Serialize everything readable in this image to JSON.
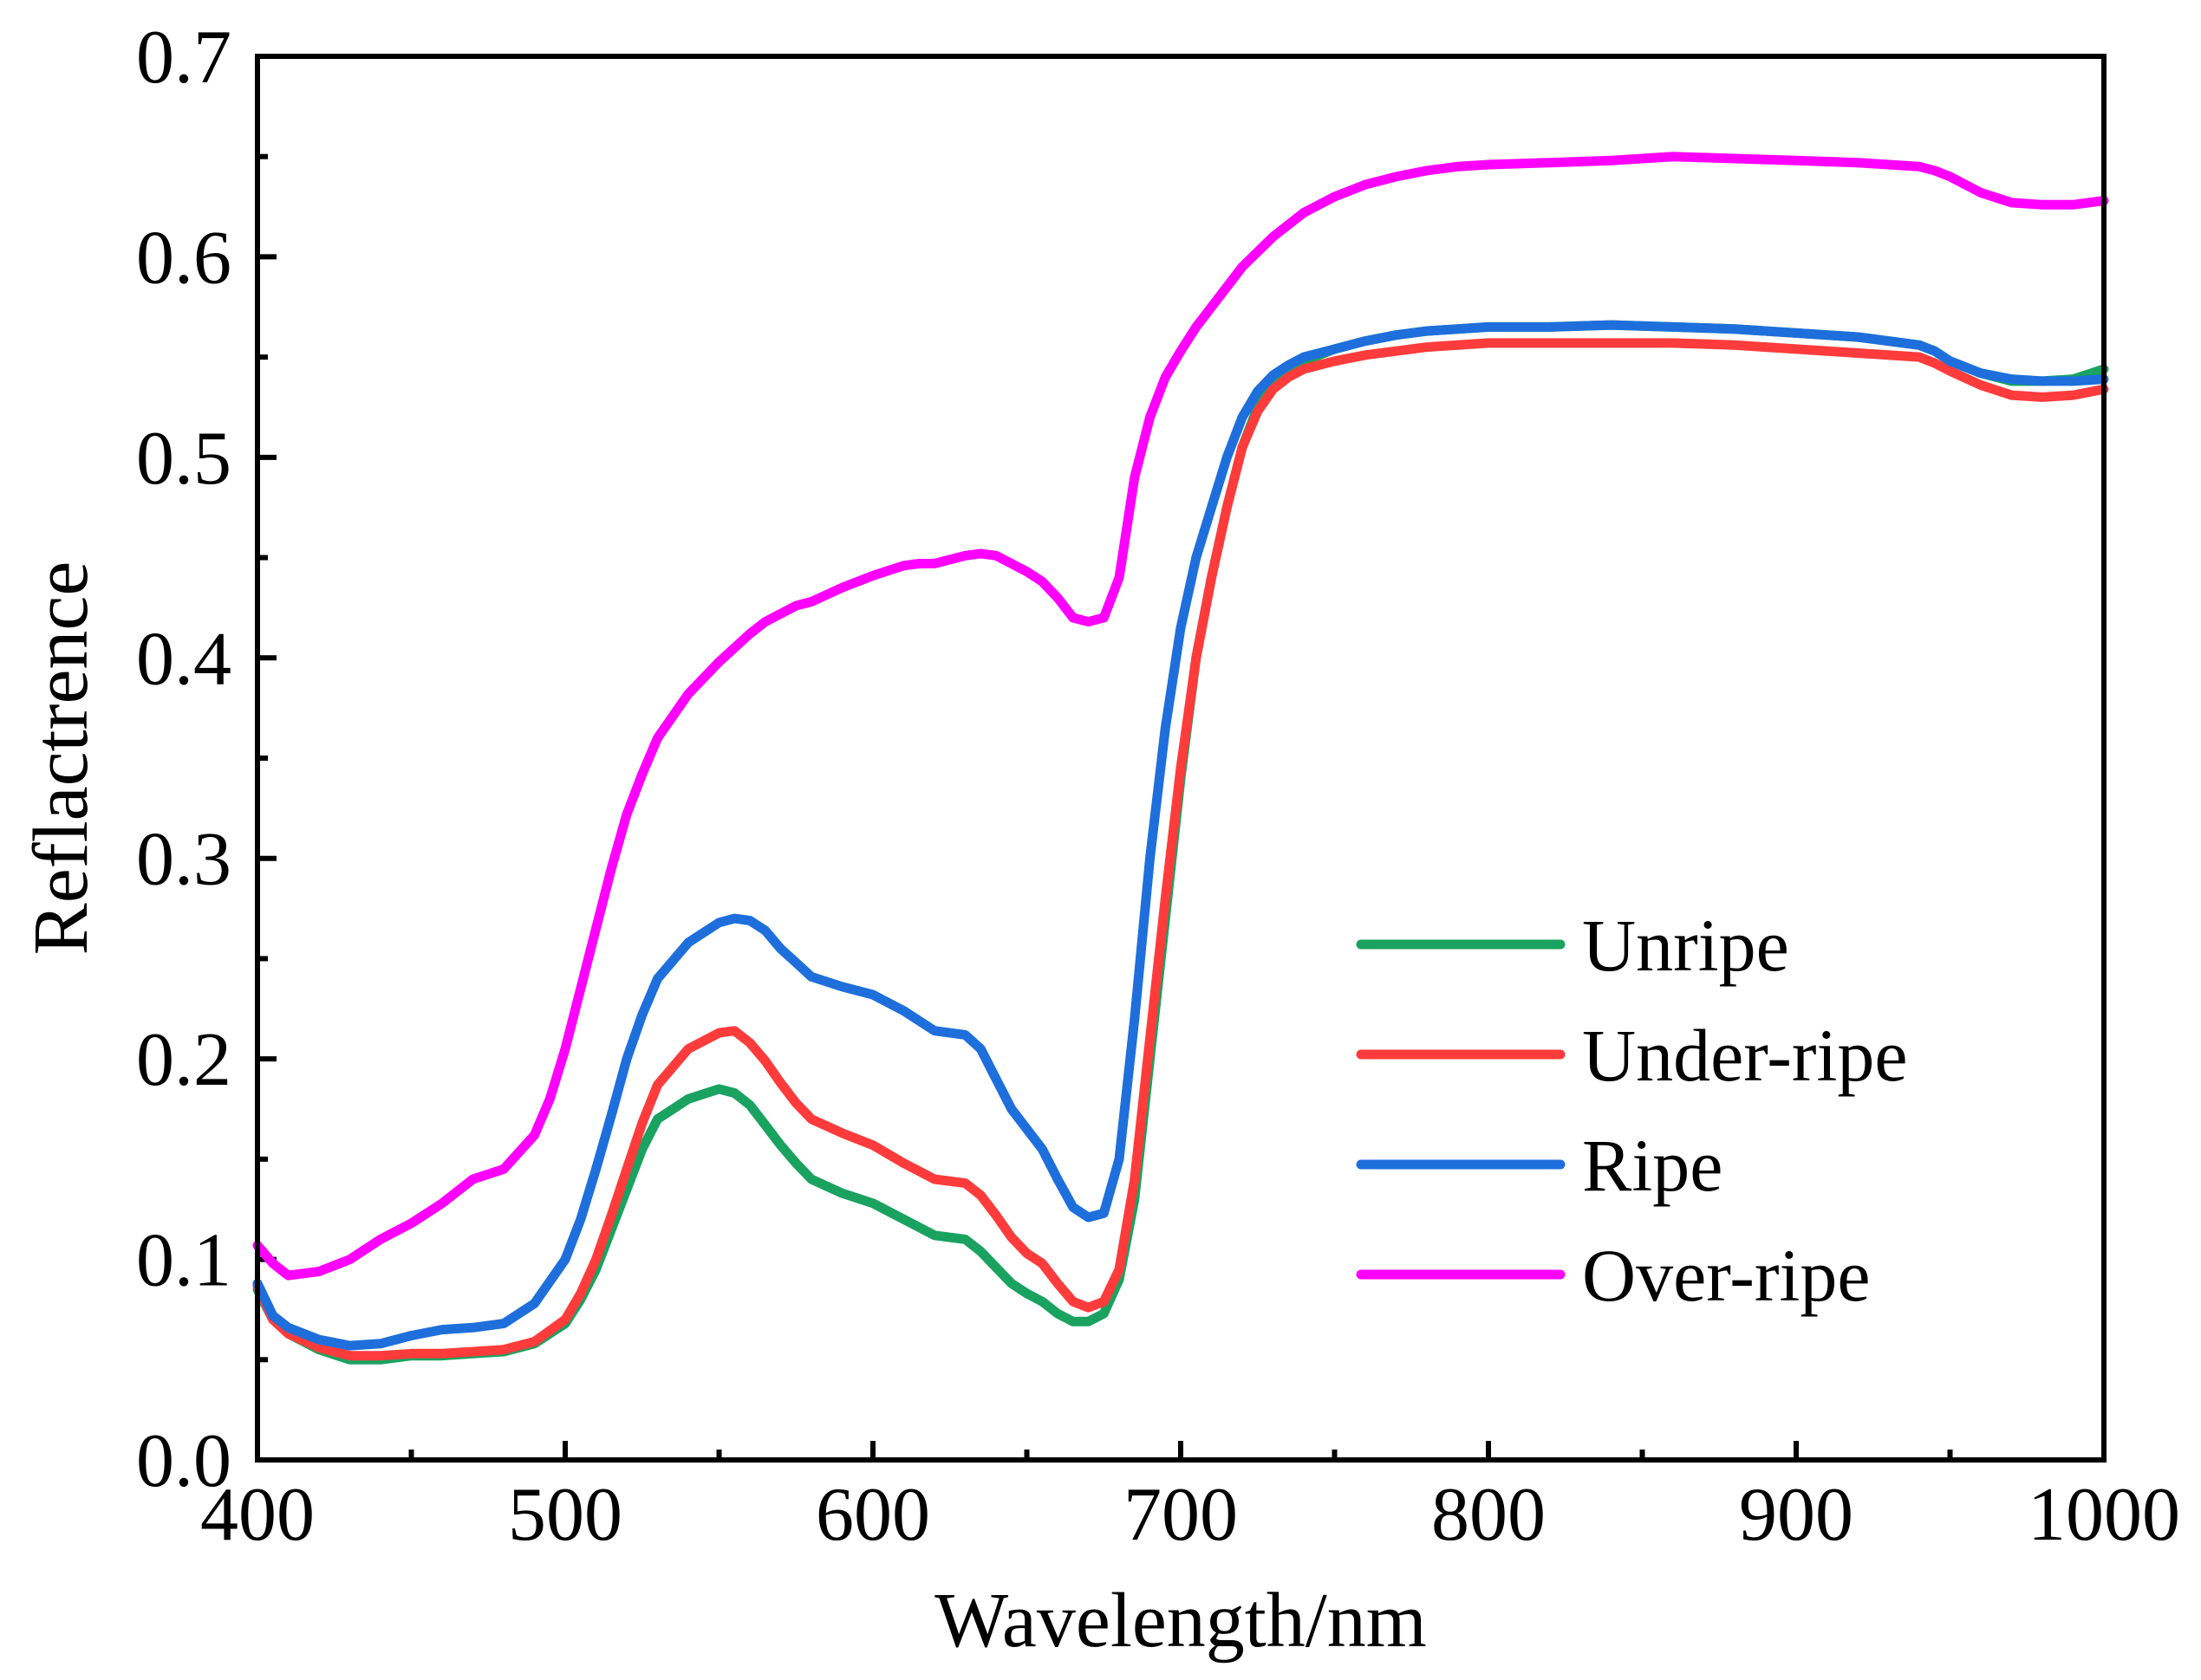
{
  "chart_data": {
    "type": "line",
    "title": "",
    "xlabel": "Wavelength/nm",
    "ylabel": "Reflactrence",
    "xlim": [
      400,
      1000
    ],
    "ylim": [
      0.0,
      0.7
    ],
    "xticks": [
      400,
      500,
      600,
      700,
      800,
      900,
      1000
    ],
    "xtick_labels": [
      "400",
      "500",
      "600",
      "700",
      "800",
      "900",
      "1000"
    ],
    "yticks": [
      0.0,
      0.1,
      0.2,
      0.3,
      0.4,
      0.5,
      0.6,
      0.7
    ],
    "ytick_labels": [
      "0.0",
      "0.1",
      "0.2",
      "0.3",
      "0.4",
      "0.5",
      "0.6",
      "0.7"
    ],
    "grid": false,
    "legend_position": "lower-right",
    "series": [
      {
        "name": "Unripe",
        "color": "#1aa260",
        "x": [
          400,
          405,
          410,
          420,
          430,
          440,
          450,
          460,
          470,
          480,
          490,
          500,
          505,
          510,
          515,
          520,
          525,
          530,
          540,
          550,
          555,
          560,
          565,
          570,
          575,
          580,
          590,
          600,
          610,
          620,
          630,
          635,
          640,
          645,
          650,
          655,
          660,
          665,
          670,
          675,
          680,
          685,
          690,
          695,
          700,
          705,
          710,
          715,
          720,
          725,
          730,
          735,
          740,
          750,
          760,
          770,
          780,
          790,
          800,
          820,
          840,
          860,
          880,
          900,
          920,
          940,
          945,
          950,
          960,
          970,
          980,
          990,
          1000
        ],
        "y": [
          0.085,
          0.07,
          0.063,
          0.055,
          0.05,
          0.05,
          0.052,
          0.052,
          0.053,
          0.054,
          0.058,
          0.068,
          0.08,
          0.095,
          0.115,
          0.135,
          0.155,
          0.17,
          0.18,
          0.185,
          0.183,
          0.177,
          0.167,
          0.157,
          0.148,
          0.14,
          0.133,
          0.128,
          0.12,
          0.112,
          0.11,
          0.104,
          0.096,
          0.088,
          0.083,
          0.079,
          0.073,
          0.069,
          0.069,
          0.073,
          0.09,
          0.13,
          0.2,
          0.27,
          0.34,
          0.4,
          0.44,
          0.475,
          0.505,
          0.525,
          0.537,
          0.543,
          0.548,
          0.554,
          0.558,
          0.561,
          0.563,
          0.564,
          0.565,
          0.565,
          0.566,
          0.565,
          0.564,
          0.562,
          0.56,
          0.556,
          0.553,
          0.548,
          0.542,
          0.538,
          0.538,
          0.539,
          0.544
        ]
      },
      {
        "name": "Under-ripe",
        "color": "#ff3b3b",
        "x": [
          400,
          405,
          410,
          420,
          430,
          440,
          450,
          460,
          470,
          480,
          490,
          500,
          505,
          510,
          515,
          520,
          525,
          530,
          540,
          550,
          555,
          560,
          565,
          570,
          575,
          580,
          590,
          600,
          610,
          620,
          630,
          635,
          640,
          645,
          650,
          655,
          660,
          665,
          670,
          675,
          680,
          685,
          690,
          695,
          700,
          705,
          710,
          715,
          720,
          725,
          730,
          735,
          740,
          750,
          760,
          770,
          780,
          790,
          800,
          820,
          840,
          860,
          880,
          900,
          920,
          940,
          945,
          950,
          960,
          970,
          980,
          990,
          1000
        ],
        "y": [
          0.087,
          0.07,
          0.063,
          0.056,
          0.052,
          0.052,
          0.053,
          0.053,
          0.054,
          0.055,
          0.059,
          0.07,
          0.083,
          0.1,
          0.122,
          0.145,
          0.168,
          0.187,
          0.205,
          0.213,
          0.214,
          0.208,
          0.199,
          0.188,
          0.178,
          0.17,
          0.163,
          0.157,
          0.148,
          0.14,
          0.138,
          0.132,
          0.122,
          0.111,
          0.103,
          0.098,
          0.088,
          0.079,
          0.076,
          0.079,
          0.095,
          0.14,
          0.21,
          0.28,
          0.345,
          0.4,
          0.44,
          0.475,
          0.505,
          0.523,
          0.534,
          0.54,
          0.544,
          0.548,
          0.551,
          0.553,
          0.555,
          0.556,
          0.557,
          0.557,
          0.557,
          0.557,
          0.556,
          0.554,
          0.552,
          0.55,
          0.547,
          0.543,
          0.536,
          0.531,
          0.53,
          0.531,
          0.534
        ]
      },
      {
        "name": "Ripe",
        "color": "#1e6fdc",
        "x": [
          400,
          405,
          410,
          420,
          430,
          440,
          450,
          460,
          470,
          480,
          490,
          500,
          505,
          510,
          515,
          520,
          525,
          530,
          540,
          550,
          555,
          560,
          565,
          570,
          575,
          580,
          590,
          600,
          610,
          620,
          630,
          635,
          640,
          645,
          650,
          655,
          660,
          665,
          670,
          675,
          680,
          685,
          690,
          695,
          700,
          705,
          710,
          715,
          720,
          725,
          730,
          735,
          740,
          750,
          760,
          770,
          780,
          790,
          800,
          820,
          840,
          860,
          880,
          900,
          920,
          940,
          945,
          950,
          960,
          970,
          980,
          990,
          1000
        ],
        "y": [
          0.088,
          0.072,
          0.066,
          0.06,
          0.057,
          0.058,
          0.062,
          0.065,
          0.066,
          0.068,
          0.078,
          0.1,
          0.12,
          0.145,
          0.172,
          0.2,
          0.222,
          0.24,
          0.258,
          0.268,
          0.27,
          0.269,
          0.264,
          0.255,
          0.248,
          0.241,
          0.236,
          0.232,
          0.224,
          0.214,
          0.212,
          0.205,
          0.19,
          0.175,
          0.165,
          0.155,
          0.14,
          0.126,
          0.121,
          0.123,
          0.15,
          0.22,
          0.3,
          0.365,
          0.415,
          0.45,
          0.475,
          0.5,
          0.52,
          0.533,
          0.541,
          0.546,
          0.55,
          0.554,
          0.558,
          0.561,
          0.563,
          0.564,
          0.565,
          0.565,
          0.566,
          0.565,
          0.564,
          0.562,
          0.56,
          0.556,
          0.553,
          0.548,
          0.542,
          0.539,
          0.538,
          0.538,
          0.539
        ]
      },
      {
        "name": "Over-ripe",
        "color": "#ff00ff",
        "x": [
          400,
          405,
          410,
          420,
          430,
          440,
          450,
          460,
          470,
          480,
          490,
          495,
          500,
          505,
          510,
          515,
          520,
          525,
          530,
          540,
          550,
          555,
          560,
          565,
          570,
          575,
          580,
          590,
          600,
          610,
          615,
          620,
          630,
          635,
          640,
          645,
          650,
          655,
          660,
          665,
          670,
          675,
          680,
          685,
          690,
          695,
          700,
          705,
          710,
          715,
          720,
          730,
          740,
          750,
          760,
          770,
          780,
          790,
          800,
          820,
          840,
          860,
          880,
          900,
          920,
          940,
          945,
          950,
          960,
          970,
          980,
          990,
          1000
        ],
        "y": [
          0.107,
          0.098,
          0.092,
          0.094,
          0.1,
          0.11,
          0.118,
          0.128,
          0.14,
          0.145,
          0.162,
          0.18,
          0.205,
          0.235,
          0.265,
          0.295,
          0.322,
          0.342,
          0.36,
          0.382,
          0.398,
          0.405,
          0.412,
          0.418,
          0.422,
          0.426,
          0.428,
          0.435,
          0.441,
          0.446,
          0.447,
          0.447,
          0.451,
          0.452,
          0.451,
          0.447,
          0.443,
          0.438,
          0.43,
          0.42,
          0.418,
          0.42,
          0.44,
          0.49,
          0.52,
          0.54,
          0.553,
          0.565,
          0.575,
          0.585,
          0.595,
          0.61,
          0.622,
          0.63,
          0.636,
          0.64,
          0.643,
          0.645,
          0.646,
          0.647,
          0.648,
          0.65,
          0.649,
          0.648,
          0.647,
          0.645,
          0.643,
          0.64,
          0.632,
          0.627,
          0.626,
          0.626,
          0.628
        ]
      }
    ]
  }
}
